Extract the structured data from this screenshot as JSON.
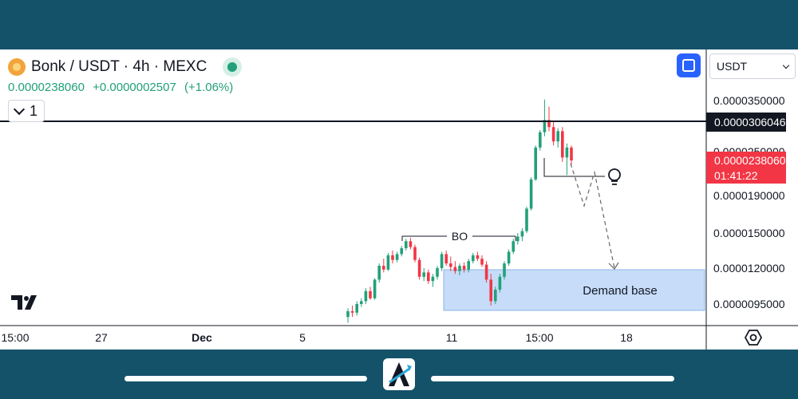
{
  "header": {
    "symbol": "Bonk / USDT · 4h · MEXC",
    "price": "0.0000238060",
    "change": "+0.0000002507",
    "change_pct": "(+1.06%)",
    "indicator_count": "1"
  },
  "currency_select": {
    "value": "USDT"
  },
  "tags": {
    "level_value": "0.0000306046",
    "last_price": "0.0000238060",
    "countdown": "01:41:22"
  },
  "colors": {
    "up": "#22a07a",
    "down": "#f23645",
    "zone_fill": "#c6dcf8",
    "brand_band": "#14526a"
  },
  "icons": [
    "coin-icon",
    "status-dot-icon",
    "chevron-down-icon",
    "fullscreen-icon",
    "lightbulb-icon",
    "tradingview-logo-icon",
    "settings-icon",
    "brand-logo-icon"
  ],
  "chart_data": {
    "type": "candlestick",
    "yaxis_ticks": [
      "0.0000350000",
      "0.0000250000",
      "0.0000190000",
      "0.0000150000",
      "0.0000120000",
      "0.0000095000"
    ],
    "xaxis_ticks": [
      "15:00",
      "27",
      "Dec",
      "5",
      "11",
      "15:00",
      "18"
    ],
    "annotations": {
      "breakout_label": "BO",
      "zone_label": "Demand base"
    },
    "candles": [
      [
        8.6e-06,
        9.2e-06,
        8.2e-06,
        9e-06
      ],
      [
        9e-06,
        9.4e-06,
        8.6e-06,
        8.9e-06
      ],
      [
        8.9e-06,
        9.7e-06,
        8.7e-06,
        9.5e-06
      ],
      [
        9.5e-06,
        9.9e-06,
        9.3e-06,
        9.7e-06
      ],
      [
        9.7e-06,
        1.06e-05,
        9.5e-06,
        1.04e-05
      ],
      [
        1.04e-05,
        1.07e-05,
        9.8e-06,
        9.9e-06
      ],
      [
        9.9e-06,
        1.13e-05,
        9.8e-06,
        1.12e-05
      ],
      [
        1.12e-05,
        1.24e-05,
        1.1e-05,
        1.22e-05
      ],
      [
        1.22e-05,
        1.28e-05,
        1.17e-05,
        1.19e-05
      ],
      [
        1.19e-05,
        1.33e-05,
        1.18e-05,
        1.31e-05
      ],
      [
        1.31e-05,
        1.35e-05,
        1.24e-05,
        1.27e-05
      ],
      [
        1.27e-05,
        1.34e-05,
        1.25e-05,
        1.32e-05
      ],
      [
        1.32e-05,
        1.39e-05,
        1.3e-05,
        1.37e-05
      ],
      [
        1.37e-05,
        1.45e-05,
        1.35e-05,
        1.43e-05
      ],
      [
        1.43e-05,
        1.46e-05,
        1.36e-05,
        1.38e-05
      ],
      [
        1.38e-05,
        1.4e-05,
        1.25e-05,
        1.27e-05
      ],
      [
        1.27e-05,
        1.29e-05,
        1.12e-05,
        1.14e-05
      ],
      [
        1.14e-05,
        1.2e-05,
        1.11e-05,
        1.17e-05
      ],
      [
        1.17e-05,
        1.19e-05,
        1.09e-05,
        1.11e-05
      ],
      [
        1.11e-05,
        1.16e-05,
        1.07e-05,
        1.14e-05
      ],
      [
        1.14e-05,
        1.22e-05,
        1.12e-05,
        1.2e-05
      ],
      [
        1.2e-05,
        1.34e-05,
        1.18e-05,
        1.32e-05
      ],
      [
        1.32e-05,
        1.35e-05,
        1.22e-05,
        1.24e-05
      ],
      [
        1.24e-05,
        1.3e-05,
        1.18e-05,
        1.21e-05
      ],
      [
        1.21e-05,
        1.26e-05,
        1.16e-05,
        1.18e-05
      ],
      [
        1.18e-05,
        1.24e-05,
        1.15e-05,
        1.22e-05
      ],
      [
        1.22e-05,
        1.25e-05,
        1.17e-05,
        1.19e-05
      ],
      [
        1.19e-05,
        1.28e-05,
        1.17e-05,
        1.26e-05
      ],
      [
        1.26e-05,
        1.33e-05,
        1.24e-05,
        1.31e-05
      ],
      [
        1.31e-05,
        1.34e-05,
        1.26e-05,
        1.28e-05
      ],
      [
        1.28e-05,
        1.31e-05,
        1.21e-05,
        1.23e-05
      ],
      [
        1.23e-05,
        1.26e-05,
        1.1e-05,
        1.12e-05
      ],
      [
        1.12e-05,
        1.16e-05,
        9.4e-06,
        9.7e-06
      ],
      [
        9.7e-06,
        1.07e-05,
        9.5e-06,
        1.05e-05
      ],
      [
        1.05e-05,
        1.16e-05,
        1.03e-05,
        1.14e-05
      ],
      [
        1.14e-05,
        1.26e-05,
        1.12e-05,
        1.24e-05
      ],
      [
        1.24e-05,
        1.36e-05,
        1.22e-05,
        1.34e-05
      ],
      [
        1.34e-05,
        1.45e-05,
        1.32e-05,
        1.43e-05
      ],
      [
        1.43e-05,
        1.5e-05,
        1.4e-05,
        1.47e-05
      ],
      [
        1.47e-05,
        1.55e-05,
        1.43e-05,
        1.52e-05
      ],
      [
        1.52e-05,
        1.78e-05,
        1.5e-05,
        1.76e-05
      ],
      [
        1.76e-05,
        2.15e-05,
        1.74e-05,
        2.12e-05
      ],
      [
        2.12e-05,
        2.62e-05,
        2.1e-05,
        2.58e-05
      ],
      [
        2.58e-05,
        2.92e-05,
        2.52e-05,
        2.88e-05
      ],
      [
        2.88e-05,
        3.52e-05,
        2.8e-05,
        3.12e-05
      ],
      [
        3.12e-05,
        3.38e-05,
        2.9e-05,
        2.98e-05
      ],
      [
        2.98e-05,
        3.1e-05,
        2.62e-05,
        2.7e-05
      ],
      [
        2.7e-05,
        2.96e-05,
        2.58e-05,
        2.9e-05
      ],
      [
        2.9e-05,
        2.98e-05,
        2.36e-05,
        2.42e-05
      ],
      [
        2.42e-05,
        2.66e-05,
        2.18e-05,
        2.58e-05
      ],
      [
        2.58e-05,
        2.62e-05,
        2.32e-05,
        2.38e-05
      ]
    ]
  }
}
